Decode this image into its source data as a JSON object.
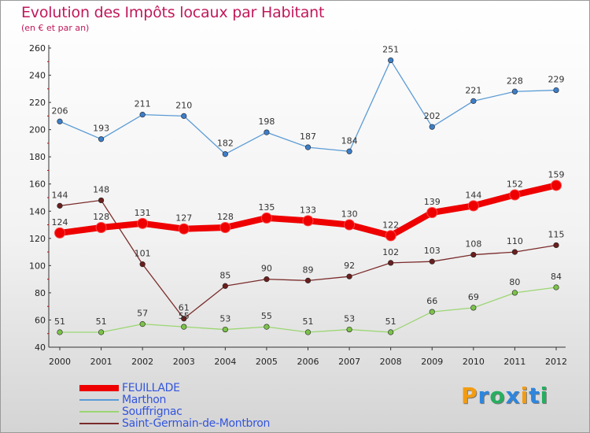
{
  "title": "Evolution des Impôts locaux par Habitant",
  "subtitle": "(en € et par an)",
  "logo": {
    "text": "Proxiti",
    "letter_colors": [
      "#f39c12",
      "#2e86de",
      "#27ae60",
      "#2e86de",
      "#f39c12",
      "#2e86de",
      "#27ae60"
    ]
  },
  "chart_data": {
    "type": "line",
    "title": "Evolution des Impôts locaux par Habitant",
    "subtitle": "(en € et par an)",
    "x": [
      "2000",
      "2001",
      "2002",
      "2003",
      "2004",
      "2005",
      "2006",
      "2007",
      "2008",
      "2009",
      "2010",
      "2011",
      "2012"
    ],
    "y_ticks": [
      40,
      60,
      80,
      100,
      120,
      140,
      160,
      180,
      200,
      220,
      240,
      260
    ],
    "ylim": [
      40,
      260
    ],
    "grid": false,
    "legend_position": "bottom-left",
    "series": [
      {
        "name": "FEUILLADE",
        "color": "#ee0000",
        "emphasis": true,
        "values": [
          124,
          128,
          131,
          127,
          128,
          135,
          133,
          130,
          122,
          139,
          144,
          152,
          159
        ],
        "labels": [
          "124",
          "128",
          "131",
          "127",
          "128",
          "135",
          "133",
          "130",
          "122",
          "139",
          "144",
          "152",
          "159"
        ]
      },
      {
        "name": "Marthon",
        "color": "#5b9bd5",
        "point_color": "#3d7ec8",
        "emphasis": false,
        "values": [
          206,
          193,
          211,
          210,
          182,
          198,
          187,
          184,
          251,
          202,
          221,
          228,
          229
        ],
        "labels": [
          "206",
          "193",
          "211",
          "210",
          "182",
          "198",
          "187",
          "184",
          "251",
          "202",
          "221",
          "228",
          "229"
        ]
      },
      {
        "name": "Souffrignac",
        "color": "#9bd672",
        "point_color": "#7cc24a",
        "emphasis": false,
        "values": [
          51,
          51,
          57,
          55,
          53,
          55,
          51,
          53,
          51,
          66,
          69,
          80,
          84
        ],
        "labels": [
          "51",
          "51",
          "57",
          "55",
          "53",
          "55",
          "51",
          "53",
          "51",
          "66",
          "69",
          "80",
          "84"
        ]
      },
      {
        "name": "Saint-Germain-de-Montbron",
        "color": "#7b2b2b",
        "point_color": "#6a1f1f",
        "emphasis": false,
        "values": [
          144,
          148,
          101,
          61,
          85,
          90,
          89,
          92,
          102,
          103,
          108,
          110,
          115
        ],
        "labels": [
          "144",
          "148",
          "101",
          "61",
          "85",
          "90",
          "89",
          "92",
          "102",
          "103",
          "108",
          "110",
          "115"
        ]
      }
    ]
  }
}
